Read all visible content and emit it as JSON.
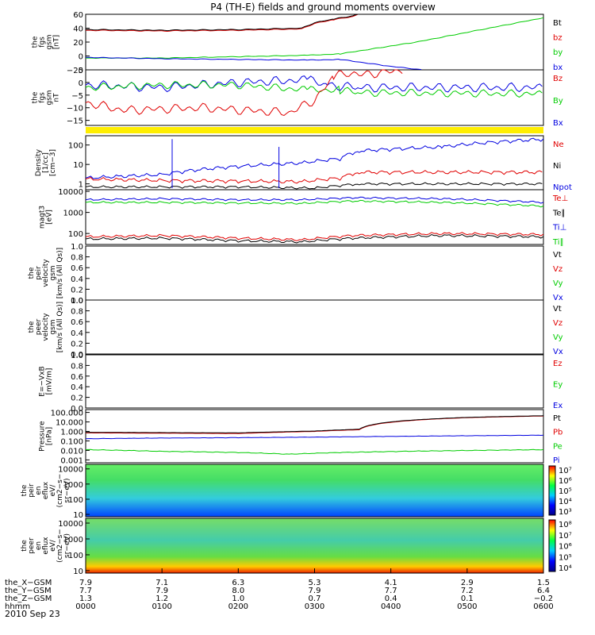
{
  "chart_data": {
    "type": "line",
    "title": "P4 (TH-E) fields and ground moments overview",
    "date": "2010 Sep 23",
    "colors": {
      "black": "#000000",
      "red": "#e00000",
      "green": "#00cc00",
      "blue": "#0000e0",
      "yellow": "#ffee00"
    },
    "panels": [
      {
        "ylabel": [
          "the",
          "fgs",
          "gsm",
          "[nT]"
        ],
        "scale": "linear",
        "ylim": [
          -20,
          60
        ],
        "ticks": [
          "60",
          "40",
          "20",
          "0",
          "−20"
        ],
        "legend": [
          [
            "Bt",
            "black"
          ],
          [
            "bz",
            "red"
          ],
          [
            "by",
            "green"
          ],
          [
            "bx",
            "blue"
          ]
        ]
      },
      {
        "ylabel": [
          "the",
          "fgs",
          "gsm",
          "nT"
        ],
        "scale": "linear",
        "ylim": [
          -17,
          5
        ],
        "ticks": [
          "5",
          "0",
          "−5",
          "−10",
          "−15"
        ],
        "legend": [
          [
            "Bz",
            "red"
          ],
          [
            "By",
            "green"
          ],
          [
            "Bx",
            "blue"
          ]
        ]
      },
      {
        "ylabel": [
          "Density",
          "[1/cc]",
          "[cm−3]"
        ],
        "scale": "log",
        "ylim": [
          0.5,
          300
        ],
        "ticks": [
          "100",
          "10",
          "1"
        ],
        "legend": [
          [
            "Ne",
            "red"
          ],
          [
            "Ni",
            "black"
          ],
          [
            "Npot",
            "blue"
          ]
        ]
      },
      {
        "ylabel": [
          "magt3",
          "[eV]"
        ],
        "scale": "log",
        "ylim": [
          30,
          12000
        ],
        "ticks": [
          "10000",
          "1000",
          "100"
        ],
        "legend": [
          [
            "Te⊥",
            "red"
          ],
          [
            "Te∥",
            "black"
          ],
          [
            "Ti⊥",
            "blue"
          ],
          [
            "Ti∥",
            "green"
          ]
        ]
      },
      {
        "ylabel": [
          "the",
          "peir",
          "velocity",
          "gsm",
          "[km/s (All Qs)]"
        ],
        "scale": "linear",
        "ylim": [
          0,
          1
        ],
        "ticks": [
          "1.0",
          "0.8",
          "0.6",
          "0.4",
          "0.2",
          "0.0"
        ],
        "legend": [
          [
            "Vt",
            "black"
          ],
          [
            "Vz",
            "red"
          ],
          [
            "Vy",
            "green"
          ],
          [
            "Vx",
            "blue"
          ]
        ]
      },
      {
        "ylabel": [
          "the",
          "peer",
          "velocity",
          "gsm",
          "[km/s (All Qs)]"
        ],
        "scale": "linear",
        "ylim": [
          0,
          1
        ],
        "ticks": [
          "1.0",
          "0.8",
          "0.6",
          "0.4",
          "0.2",
          "0.0"
        ],
        "legend": [
          [
            "Vt",
            "black"
          ],
          [
            "Vz",
            "red"
          ],
          [
            "Vy",
            "green"
          ],
          [
            "Vx",
            "blue"
          ]
        ]
      },
      {
        "ylabel": [
          "E=−VxB",
          "[mV/m]"
        ],
        "scale": "linear",
        "ylim": [
          0,
          1
        ],
        "ticks": [
          "1.0",
          "0.8",
          "0.6",
          "0.4",
          "0.2",
          "0.0"
        ],
        "legend": [
          [
            "Ez",
            "red"
          ],
          [
            "Ey",
            "green"
          ],
          [
            "Ex",
            "blue"
          ]
        ]
      },
      {
        "ylabel": [
          "Pressure",
          "[nPa]"
        ],
        "scale": "log",
        "ylim": [
          0.0005,
          200
        ],
        "ticks": [
          "100.000",
          "10.000",
          "1.000",
          "0.100",
          "0.010",
          "0.001"
        ],
        "legend": [
          [
            "Pt",
            "black"
          ],
          [
            "Pb",
            "red"
          ],
          [
            "Pe",
            "green"
          ],
          [
            "Pi",
            "blue"
          ]
        ]
      },
      {
        "ylabel": [
          "the",
          "peir",
          "en",
          "eflux",
          "eV/",
          "(cm2−s−",
          "sr−eV)"
        ],
        "scale": "log",
        "ylim": [
          7,
          20000
        ],
        "ticks": [
          "10000",
          "1000",
          "100",
          "10"
        ],
        "colorbar": [
          "10⁷",
          "10⁶",
          "10⁵",
          "10⁴",
          "10³"
        ]
      },
      {
        "ylabel": [
          "the",
          "peer",
          "en",
          "eflux",
          "eV/",
          "(cm2−s−",
          "sr−eV)"
        ],
        "scale": "log",
        "ylim": [
          7,
          20000
        ],
        "ticks": [
          "10000",
          "1000",
          "100",
          "10"
        ],
        "colorbar": [
          "10⁸",
          "10⁷",
          "10⁶",
          "10⁵",
          "10⁴"
        ]
      }
    ],
    "xaxis": {
      "rows": [
        {
          "label": "the_X−GSM",
          "values": [
            "7.9",
            "7.1",
            "6.3",
            "5.3",
            "4.1",
            "2.9",
            "1.5"
          ]
        },
        {
          "label": "the_Y−GSM",
          "values": [
            "7.7",
            "7.9",
            "8.0",
            "7.9",
            "7.7",
            "7.2",
            "6.4"
          ]
        },
        {
          "label": "the_Z−GSM",
          "values": [
            "1.3",
            "1.2",
            "1.0",
            "0.7",
            "0.4",
            "0.1",
            "−0.2"
          ]
        },
        {
          "label": "hhmm",
          "values": [
            "0000",
            "0100",
            "0200",
            "0300",
            "0400",
            "0500",
            "0600"
          ]
        }
      ]
    },
    "series_samples": {
      "Bt": [
        [
          0,
          38
        ],
        [
          60,
          37
        ],
        [
          120,
          38
        ],
        [
          170,
          40
        ],
        [
          180,
          48
        ],
        [
          195,
          53
        ],
        [
          210,
          58
        ],
        [
          215,
          62
        ]
      ],
      "bz": [
        [
          0,
          37
        ],
        [
          60,
          36
        ],
        [
          120,
          37
        ],
        [
          170,
          39
        ],
        [
          180,
          47
        ],
        [
          195,
          52
        ],
        [
          210,
          57
        ],
        [
          215,
          61
        ]
      ],
      "by": [
        [
          0,
          -3
        ],
        [
          60,
          -3
        ],
        [
          120,
          -1
        ],
        [
          175,
          1
        ],
        [
          200,
          3
        ],
        [
          260,
          20
        ],
        [
          360,
          55
        ]
      ],
      "bx": [
        [
          0,
          -2
        ],
        [
          60,
          -4
        ],
        [
          120,
          -5
        ],
        [
          175,
          -6
        ],
        [
          200,
          -5
        ],
        [
          240,
          -15
        ],
        [
          265,
          -20
        ]
      ],
      "Bz2": [
        [
          0,
          -8
        ],
        [
          30,
          -11
        ],
        [
          90,
          -10
        ],
        [
          160,
          -12
        ],
        [
          180,
          -7
        ],
        [
          195,
          2
        ],
        [
          205,
          4
        ],
        [
          215,
          3
        ],
        [
          250,
          5
        ]
      ],
      "By2": [
        [
          0,
          -2
        ],
        [
          60,
          -1
        ],
        [
          120,
          -1
        ],
        [
          175,
          -3
        ],
        [
          200,
          -3
        ],
        [
          215,
          -4
        ],
        [
          360,
          -4.5
        ]
      ],
      "Bx2": [
        [
          0,
          -1
        ],
        [
          60,
          -2
        ],
        [
          120,
          0
        ],
        [
          175,
          1
        ],
        [
          190,
          -1
        ],
        [
          215,
          -2
        ],
        [
          360,
          -2
        ]
      ],
      "Ne": [
        [
          0,
          1.8
        ],
        [
          60,
          1.5
        ],
        [
          120,
          1.4
        ],
        [
          170,
          1.3
        ],
        [
          200,
          2
        ],
        [
          215,
          4
        ],
        [
          360,
          4
        ]
      ],
      "Ni": [
        [
          0,
          0.7
        ],
        [
          60,
          0.7
        ],
        [
          120,
          0.7
        ],
        [
          180,
          0.6
        ],
        [
          215,
          1.0
        ],
        [
          360,
          1.0
        ]
      ],
      "Npot": [
        [
          0,
          2
        ],
        [
          60,
          3
        ],
        [
          120,
          8
        ],
        [
          170,
          12
        ],
        [
          200,
          20
        ],
        [
          215,
          50
        ],
        [
          280,
          80
        ],
        [
          360,
          200
        ]
      ],
      "Te_perp": [
        [
          0,
          70
        ],
        [
          60,
          80
        ],
        [
          120,
          60
        ],
        [
          170,
          50
        ],
        [
          210,
          80
        ],
        [
          280,
          100
        ],
        [
          360,
          90
        ]
      ],
      "Te_par": [
        [
          0,
          55
        ],
        [
          60,
          60
        ],
        [
          120,
          45
        ],
        [
          170,
          40
        ],
        [
          210,
          60
        ],
        [
          280,
          80
        ],
        [
          360,
          70
        ]
      ],
      "Ti_perp": [
        [
          0,
          4000
        ],
        [
          60,
          4500
        ],
        [
          120,
          4000
        ],
        [
          170,
          4000
        ],
        [
          210,
          5000
        ],
        [
          280,
          4500
        ],
        [
          360,
          3000
        ]
      ],
      "Ti_par": [
        [
          0,
          3000
        ],
        [
          60,
          3000
        ],
        [
          120,
          2800
        ],
        [
          170,
          2700
        ],
        [
          210,
          3500
        ],
        [
          280,
          3000
        ],
        [
          360,
          2000
        ]
      ],
      "Pt": [
        [
          0,
          0.8
        ],
        [
          120,
          0.7
        ],
        [
          180,
          1.1
        ],
        [
          215,
          1.7
        ],
        [
          240,
          10
        ],
        [
          300,
          30
        ],
        [
          360,
          45
        ]
      ],
      "Pb": [
        [
          0,
          0.7
        ],
        [
          120,
          0.6
        ],
        [
          180,
          1.0
        ],
        [
          215,
          1.5
        ],
        [
          240,
          9
        ],
        [
          300,
          28
        ],
        [
          360,
          42
        ]
      ],
      "Pe": [
        [
          0,
          0.012
        ],
        [
          60,
          0.008
        ],
        [
          120,
          0.006
        ],
        [
          160,
          0.004
        ],
        [
          200,
          0.006
        ],
        [
          250,
          0.008
        ],
        [
          360,
          0.012
        ]
      ],
      "Pi": [
        [
          0,
          0.17
        ],
        [
          60,
          0.2
        ],
        [
          120,
          0.22
        ],
        [
          180,
          0.25
        ],
        [
          240,
          0.3
        ],
        [
          300,
          0.35
        ],
        [
          360,
          0.4
        ]
      ]
    }
  }
}
